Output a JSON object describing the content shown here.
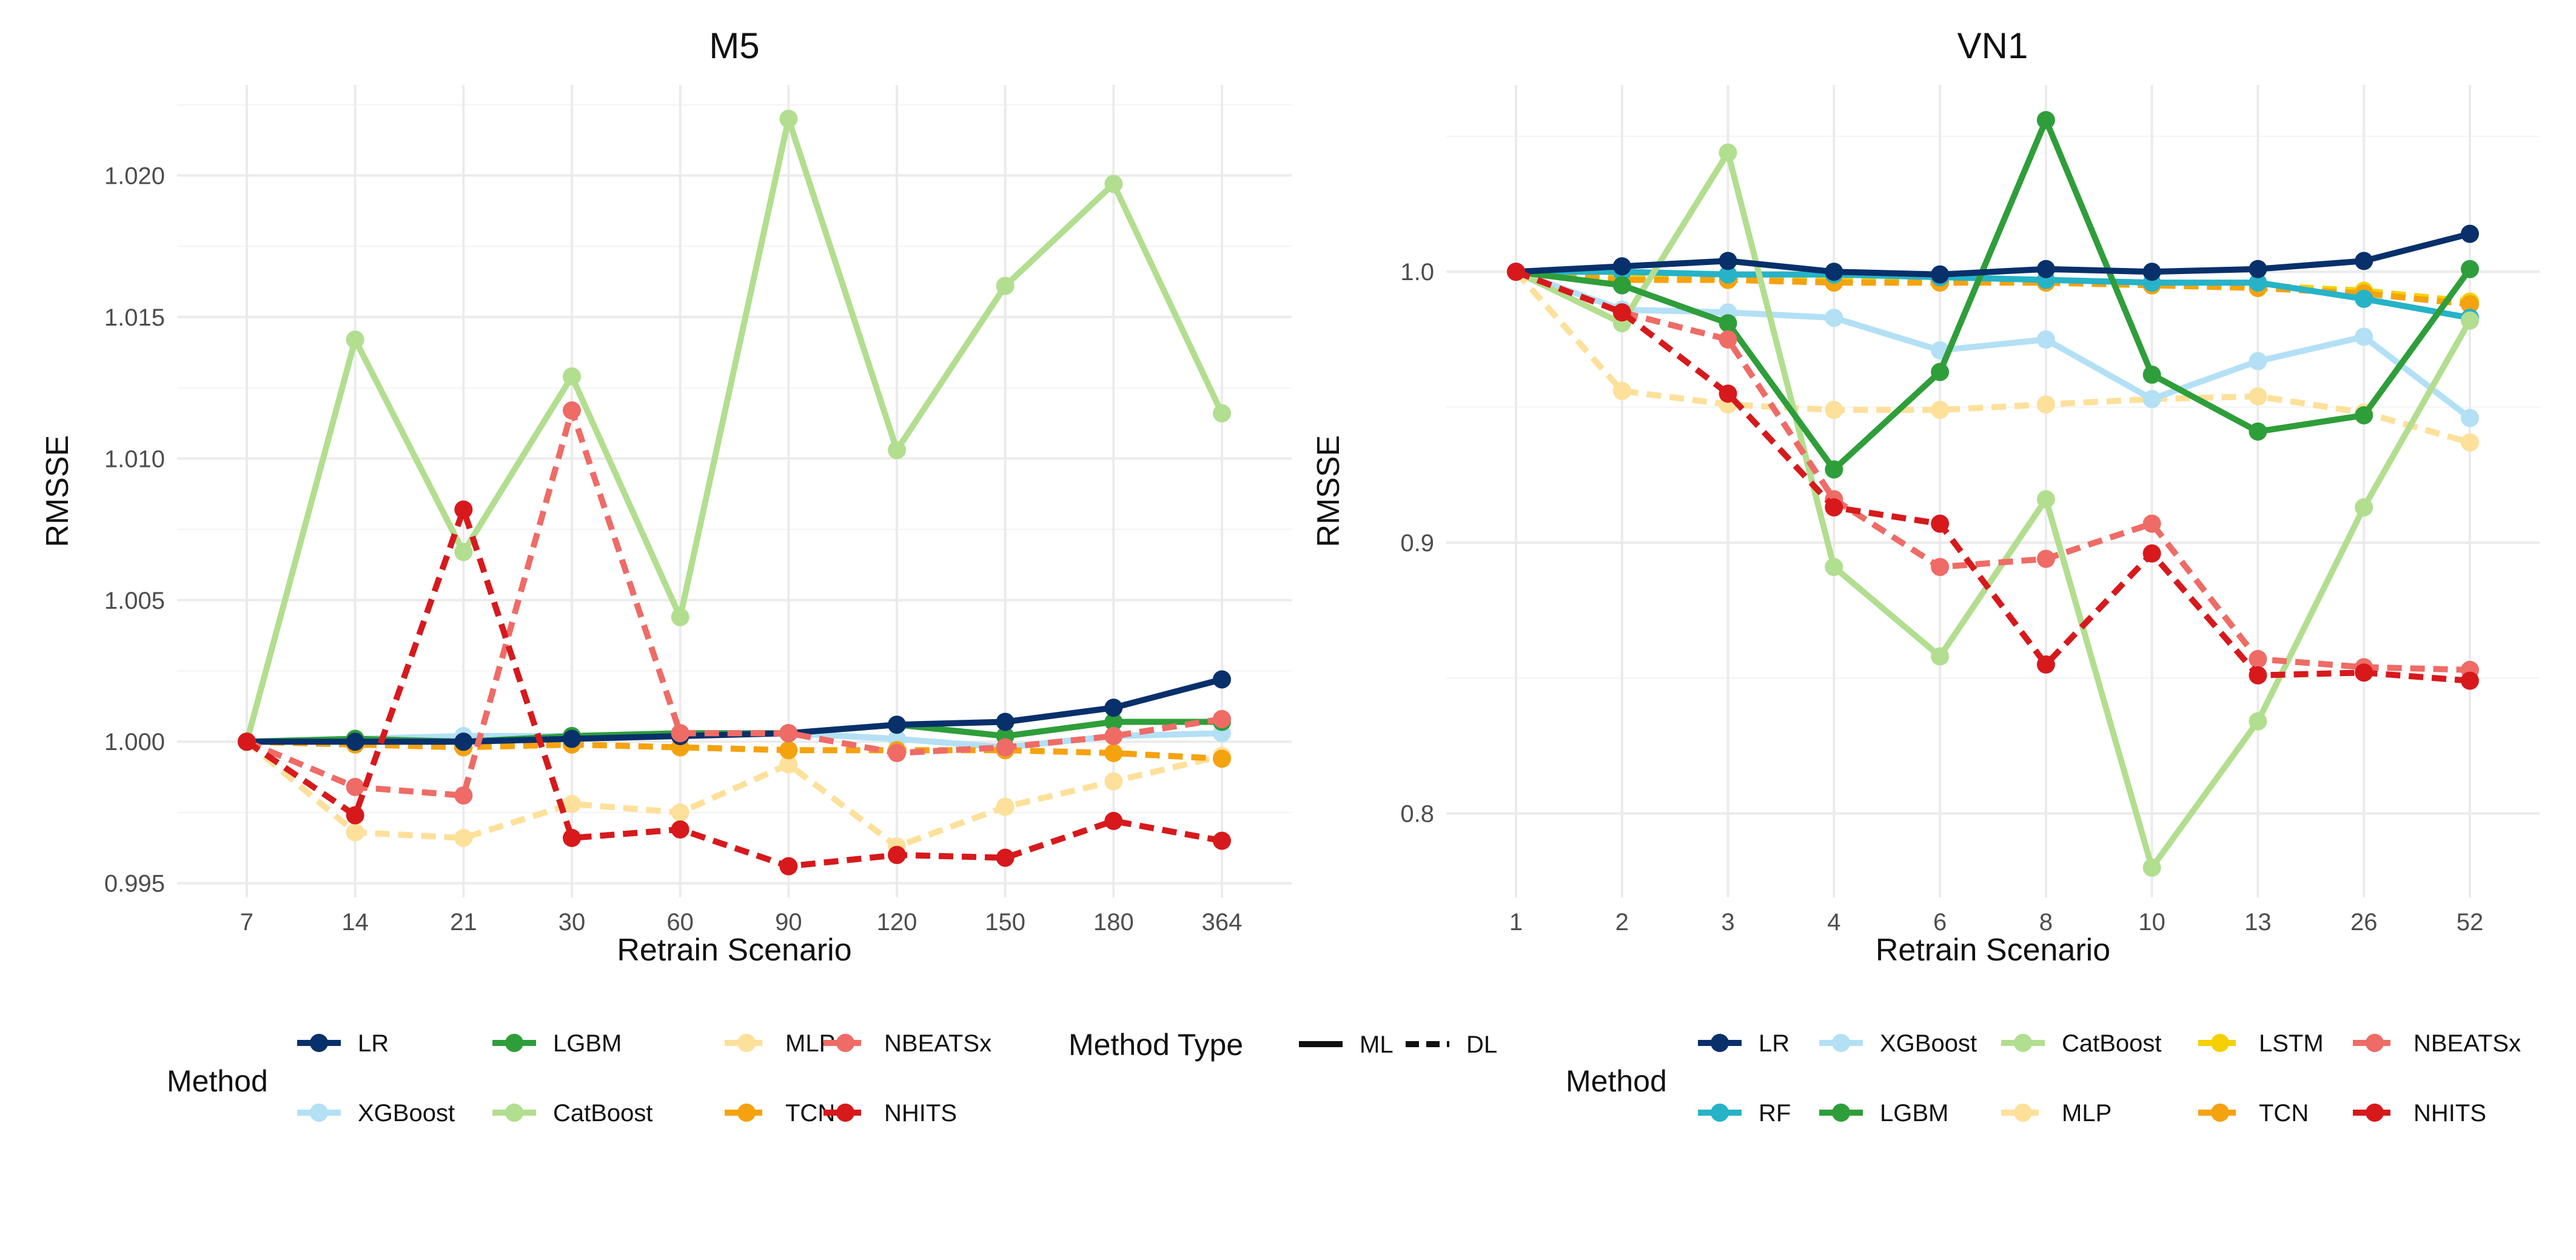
{
  "figure": {
    "legend_title_method": "Method",
    "legend_title_type": "Method Type",
    "type_legend": [
      {
        "label": "ML",
        "dash": "solid"
      },
      {
        "label": "DL",
        "dash": "dashed"
      }
    ]
  },
  "colors": {
    "LR": "#08306b",
    "RF": "#26b3c8",
    "XGBoost": "#b3e0f5",
    "LGBM": "#2e9e3a",
    "CatBoost": "#b2de8f",
    "MLP": "#fde09a",
    "LSTM": "#f5d000",
    "TCN": "#f5a20f",
    "NBEATSx": "#ef6b66",
    "NHITS": "#d7191c"
  },
  "chart_data": [
    {
      "type": "line",
      "title": "M5",
      "xlabel": "Retrain Scenario",
      "ylabel": "RMSSE",
      "categories": [
        "7",
        "14",
        "21",
        "30",
        "60",
        "90",
        "120",
        "150",
        "180",
        "364"
      ],
      "ylim": [
        0.9945,
        1.0232
      ],
      "yticks": [
        0.995,
        1.0,
        1.005,
        1.01,
        1.015,
        1.02
      ],
      "ytick_labels": [
        "0.995",
        "1.000",
        "1.005",
        "1.010",
        "1.015",
        "1.020"
      ],
      "legend_labels": [
        "LR",
        "LGBM",
        "MLP",
        "NBEATSx",
        "XGBoost",
        "CatBoost",
        "TCN",
        "NHITS"
      ],
      "series": [
        {
          "name": "MLP",
          "type": "DL",
          "values": [
            1.0,
            0.9968,
            0.9966,
            0.9978,
            0.9975,
            0.9992,
            0.9963,
            0.9977,
            0.9986,
            0.9995
          ]
        },
        {
          "name": "XGBoost",
          "type": "ML",
          "values": [
            1.0,
            1.0001,
            1.0002,
            1.0002,
            1.0003,
            1.0003,
            1.0001,
            0.9998,
            1.0002,
            1.0003
          ]
        },
        {
          "name": "TCN",
          "type": "DL",
          "values": [
            1.0,
            0.9999,
            0.9998,
            0.9999,
            0.9998,
            0.9997,
            0.9997,
            0.9997,
            0.9996,
            0.9994
          ]
        },
        {
          "name": "CatBoost",
          "type": "ML",
          "values": [
            1.0,
            1.0142,
            1.0067,
            1.0129,
            1.0044,
            1.022,
            1.0103,
            1.0161,
            1.0197,
            1.0116
          ]
        },
        {
          "name": "LGBM",
          "type": "ML",
          "values": [
            1.0,
            1.0001,
            1.0,
            1.0002,
            1.0003,
            1.0003,
            1.0006,
            1.0002,
            1.0007,
            1.0007
          ]
        },
        {
          "name": "LR",
          "type": "ML",
          "values": [
            1.0,
            1.0,
            1.0,
            1.0001,
            1.0002,
            1.0003,
            1.0006,
            1.0007,
            1.0012,
            1.0022
          ]
        },
        {
          "name": "NBEATSx",
          "type": "DL",
          "values": [
            1.0,
            0.9984,
            0.9981,
            1.0117,
            1.0003,
            1.0003,
            0.9996,
            0.9998,
            1.0002,
            1.0008
          ]
        },
        {
          "name": "NHITS",
          "type": "DL",
          "values": [
            1.0,
            0.9974,
            1.0082,
            0.9966,
            0.9969,
            0.9956,
            0.996,
            0.9959,
            0.9972,
            0.9965
          ]
        }
      ]
    },
    {
      "type": "line",
      "title": "VN1",
      "xlabel": "Retrain Scenario",
      "ylabel": "RMSSE",
      "categories": [
        "1",
        "2",
        "3",
        "4",
        "6",
        "8",
        "10",
        "13",
        "26",
        "52"
      ],
      "ylim": [
        0.769,
        1.069
      ],
      "yticks": [
        0.8,
        0.9,
        1.0
      ],
      "ytick_labels": [
        "0.8",
        "0.9",
        "1.0"
      ],
      "legend_labels": [
        "LR",
        "XGBoost",
        "CatBoost",
        "LSTM",
        "NBEATSx",
        "RF",
        "LGBM",
        "MLP",
        "TCN",
        "NHITS"
      ],
      "series": [
        {
          "name": "MLP",
          "type": "DL",
          "values": [
            1.0,
            0.956,
            0.951,
            0.949,
            0.949,
            0.951,
            0.953,
            0.954,
            0.948,
            0.937
          ]
        },
        {
          "name": "XGBoost",
          "type": "ML",
          "values": [
            1.0,
            0.986,
            0.985,
            0.983,
            0.971,
            0.975,
            0.953,
            0.967,
            0.976,
            0.946
          ]
        },
        {
          "name": "LSTM",
          "type": "DL",
          "values": [
            1.0,
            0.998,
            0.998,
            0.997,
            0.997,
            0.996,
            0.995,
            0.995,
            0.993,
            0.989
          ]
        },
        {
          "name": "TCN",
          "type": "DL",
          "values": [
            1.0,
            0.997,
            0.997,
            0.996,
            0.996,
            0.996,
            0.995,
            0.994,
            0.992,
            0.988
          ]
        },
        {
          "name": "RF",
          "type": "ML",
          "values": [
            1.0,
            1.0,
            0.999,
            0.999,
            0.998,
            0.997,
            0.996,
            0.996,
            0.99,
            0.983
          ]
        },
        {
          "name": "CatBoost",
          "type": "ML",
          "values": [
            1.0,
            0.981,
            1.044,
            0.891,
            0.858,
            0.916,
            0.78,
            0.834,
            0.913,
            0.982
          ]
        },
        {
          "name": "LGBM",
          "type": "ML",
          "values": [
            1.0,
            0.995,
            0.981,
            0.927,
            0.963,
            1.056,
            0.962,
            0.941,
            0.947,
            1.001
          ]
        },
        {
          "name": "LR",
          "type": "ML",
          "values": [
            1.0,
            1.002,
            1.004,
            1.0,
            0.999,
            1.001,
            1.0,
            1.001,
            1.004,
            1.014
          ]
        },
        {
          "name": "NBEATSx",
          "type": "DL",
          "values": [
            1.0,
            0.985,
            0.975,
            0.916,
            0.891,
            0.894,
            0.907,
            0.857,
            0.854,
            0.853
          ]
        },
        {
          "name": "NHITS",
          "type": "DL",
          "values": [
            1.0,
            0.985,
            0.955,
            0.913,
            0.907,
            0.855,
            0.896,
            0.851,
            0.852,
            0.849
          ]
        }
      ]
    }
  ]
}
